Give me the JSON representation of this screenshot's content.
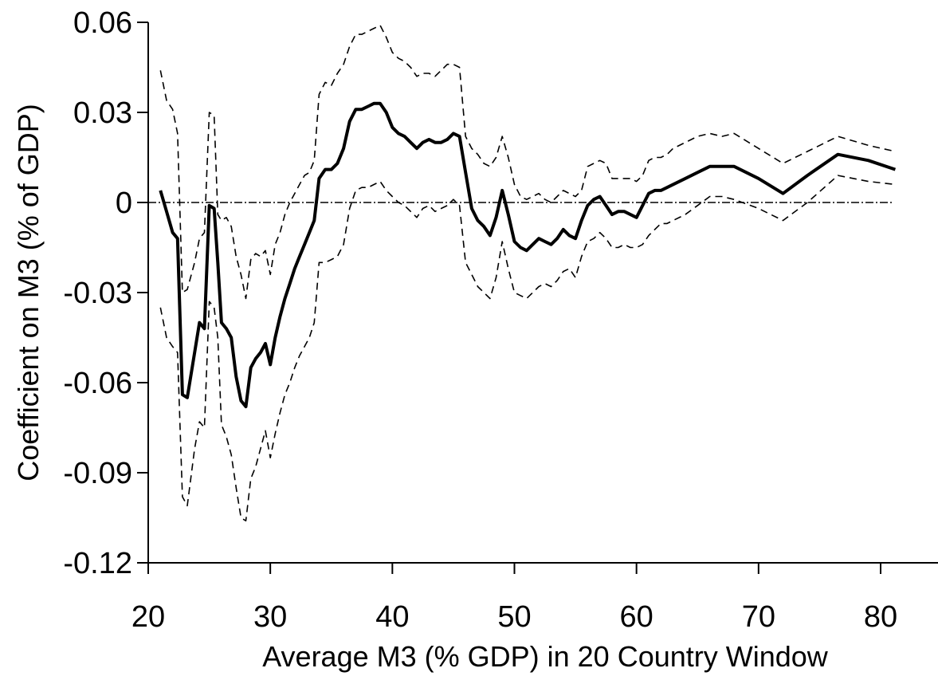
{
  "chart_data": {
    "type": "line",
    "title": "",
    "xlabel": "Average M3 (% GDP) in 20 Country Window",
    "ylabel": "Coefficient on M3 (% of GDP)",
    "xlim": [
      20,
      85
    ],
    "ylim": [
      -0.12,
      0.06
    ],
    "xticks": [
      20,
      30,
      40,
      50,
      60,
      70,
      80
    ],
    "xtick_labels": [
      "20",
      "30",
      "40",
      "50",
      "60",
      "70",
      "80"
    ],
    "yticks": [
      0.06,
      0.03,
      0,
      -0.03,
      -0.06,
      -0.09,
      -0.12
    ],
    "ytick_labels": [
      "0.06",
      "0.03",
      "0",
      "-0.03",
      "-0.06",
      "-0.09",
      "-0.12"
    ],
    "grid": false,
    "legend": "none",
    "reference_line": {
      "y": 0,
      "style": "dash-dot"
    },
    "series": [
      {
        "style": "solid-thick",
        "x": [
          21,
          21.5,
          22,
          22.4,
          22.8,
          23.2,
          23.8,
          24.2,
          24.6,
          25,
          25.4,
          25.7,
          26,
          26.4,
          26.8,
          27.2,
          27.6,
          28,
          28.4,
          28.8,
          29.2,
          29.6,
          30,
          30.4,
          30.8,
          31.2,
          31.6,
          32,
          32.4,
          32.8,
          33.2,
          33.6,
          34,
          34.5,
          35,
          35.5,
          36,
          36.5,
          37,
          37.5,
          38,
          38.5,
          39,
          39.5,
          40,
          40.5,
          41,
          41.5,
          42,
          42.5,
          43,
          43.5,
          44,
          44.5,
          45,
          45.5,
          46,
          46.5,
          47,
          47.5,
          48,
          48.5,
          49,
          49.5,
          50,
          50.5,
          51,
          51.5,
          52,
          52.5,
          53,
          53.5,
          54,
          54.5,
          55,
          55.5,
          56,
          56.5,
          57,
          57.5,
          58,
          58.5,
          59,
          59.5,
          60,
          60.5,
          61,
          61.5,
          62,
          62.5,
          63,
          64,
          65,
          66,
          67,
          68,
          70,
          72,
          74,
          76.5,
          79,
          81.2
        ],
        "y": [
          0.004,
          -0.003,
          -0.01,
          -0.012,
          -0.064,
          -0.065,
          -0.05,
          -0.04,
          -0.042,
          -0.001,
          -0.002,
          -0.02,
          -0.04,
          -0.042,
          -0.045,
          -0.058,
          -0.066,
          -0.068,
          -0.055,
          -0.052,
          -0.05,
          -0.047,
          -0.054,
          -0.045,
          -0.038,
          -0.032,
          -0.027,
          -0.022,
          -0.018,
          -0.014,
          -0.01,
          -0.006,
          0.008,
          0.011,
          0.011,
          0.013,
          0.018,
          0.027,
          0.031,
          0.031,
          0.032,
          0.033,
          0.033,
          0.03,
          0.025,
          0.023,
          0.022,
          0.02,
          0.018,
          0.02,
          0.021,
          0.02,
          0.02,
          0.021,
          0.023,
          0.022,
          0.01,
          -0.002,
          -0.006,
          -0.008,
          -0.011,
          -0.005,
          0.004,
          -0.004,
          -0.013,
          -0.015,
          -0.016,
          -0.014,
          -0.012,
          -0.013,
          -0.014,
          -0.012,
          -0.009,
          -0.011,
          -0.012,
          -0.006,
          -0.001,
          0.001,
          0.002,
          -0.001,
          -0.004,
          -0.003,
          -0.003,
          -0.004,
          -0.005,
          -0.001,
          0.003,
          0.004,
          0.004,
          0.005,
          0.006,
          0.008,
          0.01,
          0.012,
          0.012,
          0.012,
          0.008,
          0.003,
          0.009,
          0.016,
          0.014,
          0.011
        ]
      },
      {
        "style": "dashed",
        "x": [
          21,
          21.5,
          22,
          22.4,
          22.8,
          23.2,
          23.8,
          24.2,
          24.6,
          25,
          25.4,
          25.7,
          26,
          26.4,
          26.8,
          27.2,
          27.6,
          28,
          28.4,
          28.8,
          29.2,
          29.6,
          30,
          30.4,
          30.8,
          31.2,
          31.6,
          32,
          32.4,
          32.8,
          33.2,
          33.6,
          34,
          34.5,
          35,
          35.5,
          36,
          36.5,
          37,
          37.5,
          38,
          38.5,
          39,
          39.5,
          40,
          40.5,
          41,
          41.5,
          42,
          42.5,
          43,
          43.5,
          44,
          44.5,
          45,
          45.5,
          46,
          46.5,
          47,
          47.5,
          48,
          48.5,
          49,
          49.5,
          50,
          50.5,
          51,
          51.5,
          52,
          52.5,
          53,
          53.5,
          54,
          54.5,
          55,
          55.5,
          56,
          56.5,
          57,
          57.5,
          58,
          58.5,
          59,
          59.5,
          60,
          60.5,
          61,
          61.5,
          62,
          62.5,
          63,
          64,
          65,
          66,
          67,
          68,
          70,
          72,
          74,
          76.5,
          79,
          81.2
        ],
        "y": [
          0.044,
          0.034,
          0.031,
          0.023,
          -0.03,
          -0.029,
          -0.02,
          -0.012,
          -0.01,
          0.03,
          0.029,
          -0.004,
          -0.006,
          -0.005,
          -0.008,
          -0.018,
          -0.024,
          -0.032,
          -0.019,
          -0.017,
          -0.018,
          -0.016,
          -0.024,
          -0.014,
          -0.01,
          -0.004,
          0.0,
          0.003,
          0.006,
          0.009,
          0.01,
          0.014,
          0.036,
          0.04,
          0.039,
          0.043,
          0.046,
          0.052,
          0.056,
          0.056,
          0.057,
          0.058,
          0.059,
          0.055,
          0.05,
          0.048,
          0.047,
          0.045,
          0.042,
          0.043,
          0.043,
          0.042,
          0.044,
          0.046,
          0.046,
          0.045,
          0.022,
          0.018,
          0.016,
          0.013,
          0.012,
          0.015,
          0.022,
          0.015,
          0.006,
          0.002,
          0.001,
          0.002,
          0.003,
          0.001,
          0.0,
          0.002,
          0.004,
          0.003,
          0.002,
          0.004,
          0.012,
          0.013,
          0.014,
          0.013,
          0.008,
          0.008,
          0.008,
          0.008,
          0.007,
          0.009,
          0.014,
          0.015,
          0.015,
          0.016,
          0.018,
          0.02,
          0.022,
          0.023,
          0.022,
          0.023,
          0.018,
          0.013,
          0.017,
          0.022,
          0.019,
          0.017
        ]
      },
      {
        "style": "dashed",
        "x": [
          21,
          21.5,
          22,
          22.4,
          22.8,
          23.2,
          23.8,
          24.2,
          24.6,
          25,
          25.4,
          25.7,
          26,
          26.4,
          26.8,
          27.2,
          27.6,
          28,
          28.4,
          28.8,
          29.2,
          29.6,
          30,
          30.4,
          30.8,
          31.2,
          31.6,
          32,
          32.4,
          32.8,
          33.2,
          33.6,
          34,
          34.5,
          35,
          35.5,
          36,
          36.5,
          37,
          37.5,
          38,
          38.5,
          39,
          39.5,
          40,
          40.5,
          41,
          41.5,
          42,
          42.5,
          43,
          43.5,
          44,
          44.5,
          45,
          45.5,
          46,
          46.5,
          47,
          47.5,
          48,
          48.5,
          49,
          49.5,
          50,
          50.5,
          51,
          51.5,
          52,
          52.5,
          53,
          53.5,
          54,
          54.5,
          55,
          55.5,
          56,
          56.5,
          57,
          57.5,
          58,
          58.5,
          59,
          59.5,
          60,
          60.5,
          61,
          61.5,
          62,
          62.5,
          63,
          64,
          65,
          66,
          67,
          68,
          70,
          72,
          74,
          76.5,
          79,
          81.2
        ],
        "y": [
          -0.035,
          -0.045,
          -0.048,
          -0.05,
          -0.098,
          -0.101,
          -0.082,
          -0.073,
          -0.075,
          -0.033,
          -0.035,
          -0.045,
          -0.074,
          -0.078,
          -0.084,
          -0.095,
          -0.105,
          -0.106,
          -0.092,
          -0.088,
          -0.082,
          -0.076,
          -0.085,
          -0.077,
          -0.07,
          -0.064,
          -0.06,
          -0.055,
          -0.051,
          -0.048,
          -0.045,
          -0.04,
          -0.02,
          -0.02,
          -0.019,
          -0.018,
          -0.014,
          -0.002,
          0.004,
          0.005,
          0.005,
          0.006,
          0.007,
          0.004,
          0.002,
          0.0,
          -0.001,
          -0.003,
          -0.005,
          -0.002,
          -0.001,
          -0.003,
          -0.002,
          -0.001,
          0.001,
          -0.001,
          -0.02,
          -0.024,
          -0.028,
          -0.03,
          -0.032,
          -0.025,
          -0.013,
          -0.022,
          -0.03,
          -0.031,
          -0.032,
          -0.03,
          -0.028,
          -0.027,
          -0.028,
          -0.026,
          -0.023,
          -0.022,
          -0.025,
          -0.018,
          -0.013,
          -0.012,
          -0.01,
          -0.012,
          -0.015,
          -0.015,
          -0.014,
          -0.015,
          -0.015,
          -0.014,
          -0.011,
          -0.009,
          -0.007,
          -0.007,
          -0.006,
          -0.004,
          -0.001,
          0.002,
          0.002,
          0.001,
          -0.002,
          -0.006,
          0.0,
          0.009,
          0.007,
          0.006
        ]
      }
    ]
  }
}
